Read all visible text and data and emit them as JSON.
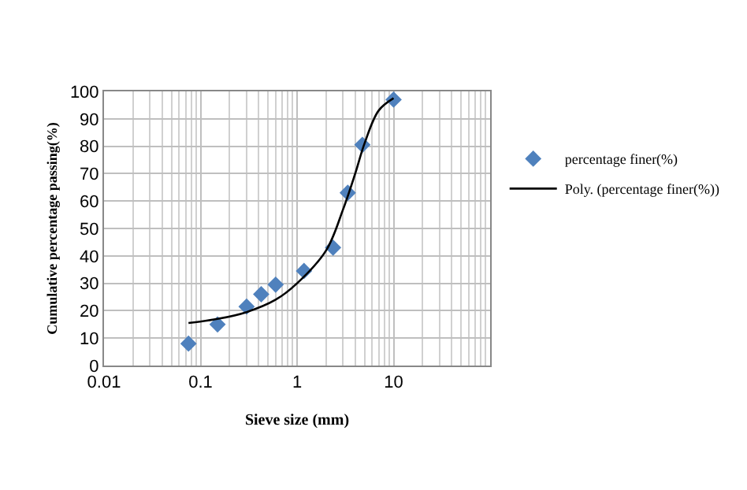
{
  "chart_data": {
    "type": "scatter",
    "xlabel": "Sieve size (mm)",
    "ylabel": "Cumulative percentage passing(%)",
    "log": "x",
    "xlim": [
      0.01,
      100
    ],
    "xticks": [
      0.01,
      0.1,
      1,
      10,
      {
        "value": 100,
        "label": null
      }
    ],
    "ylim": [
      0,
      100
    ],
    "yticks": [
      0,
      10,
      20,
      30,
      40,
      50,
      60,
      70,
      80,
      90,
      100
    ],
    "grid": true,
    "legend": "right",
    "series": [
      {
        "name": "percentage finer(%)",
        "color": "#4f81bd",
        "marker": "diamond",
        "x": [
          0.075,
          0.15,
          0.3,
          0.425,
          0.6,
          1.18,
          2.36,
          3.35,
          4.75,
          10
        ],
        "values": [
          8,
          15,
          21.5,
          26,
          29.5,
          34.5,
          43,
          63,
          80.5,
          97
        ]
      },
      {
        "name": "Poly. (percentage finer(%))",
        "type": "line",
        "color": "#000000",
        "line_style": "solid",
        "marker": "none",
        "x": [
          0.075,
          0.15,
          0.3,
          0.6,
          1,
          2,
          3,
          4,
          5,
          7,
          10
        ],
        "values": [
          15.5,
          17,
          19.5,
          24,
          30,
          42,
          57,
          70,
          81,
          93,
          97.5
        ]
      }
    ]
  }
}
